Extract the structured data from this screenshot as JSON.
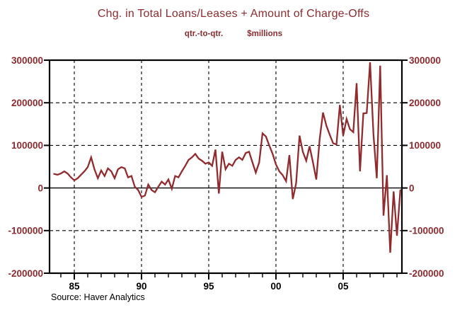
{
  "title": "Chg. in Total Loans/Leases + Amount of Charge-Offs",
  "subtitle": {
    "left": "qtr.-to-qtr.",
    "right": "$millions"
  },
  "source": "Source: Haver Analytics",
  "colors": {
    "title_red": "#8E2B2F",
    "axis_label_red": "#8E2B2F",
    "line_red": "#922B2E",
    "axis_black": "#000000",
    "background": "#FFFFFF"
  },
  "chart_data": {
    "type": "line",
    "title": "Chg. in Total Loans/Leases + Amount of Charge-Offs",
    "subtitle": "qtr.-to-qtr. $millions",
    "units": "$millions",
    "frequency": "quarterly",
    "grid": "dashed horizontal at 200000/100000/-100000, solid zero line, dashed vertical at labeled years",
    "legend_position": "none",
    "ylim": [
      -200000,
      300000
    ],
    "y_ticks": [
      300000,
      200000,
      100000,
      0,
      -100000,
      -200000
    ],
    "dashed_gridlines_y": [
      200000,
      100000,
      -100000
    ],
    "zero_line_y": 0,
    "x_axis": {
      "major_tick_years": [
        1985,
        1990,
        1995,
        2000,
        2005
      ],
      "major_tick_labels": [
        "85",
        "90",
        "95",
        "00",
        "05"
      ],
      "minor_tick_year_range": [
        1984,
        2009
      ],
      "vertical_dashed_gridlines_at_major_ticks": true
    },
    "series": [
      {
        "name": "Chg. in Total Loans/Leases + Amount of Charge-Offs",
        "start_year": 1983.5,
        "period_years": 0.25,
        "values": [
          33000,
          31000,
          34000,
          39000,
          34000,
          25000,
          18000,
          23000,
          31000,
          39000,
          49000,
          72000,
          44000,
          23000,
          41000,
          28000,
          46000,
          39000,
          23000,
          44000,
          49000,
          46000,
          25000,
          28000,
          3000,
          -5000,
          -21000,
          -18000,
          8000,
          -5000,
          -10000,
          3000,
          15000,
          8000,
          20000,
          -2000,
          28000,
          25000,
          39000,
          52000,
          66000,
          72000,
          80000,
          69000,
          64000,
          57000,
          60000,
          52000,
          90000,
          -13000,
          85000,
          44000,
          57000,
          52000,
          66000,
          72000,
          66000,
          82000,
          85000,
          60000,
          36000,
          60000,
          128000,
          121000,
          100000,
          80000,
          55000,
          39000,
          30000,
          16000,
          77000,
          -26000,
          11000,
          123000,
          85000,
          64000,
          98000,
          60000,
          20000,
          115000,
          177000,
          146000,
          125000,
          105000,
          102000,
          195000,
          123000,
          162000,
          138000,
          131000,
          246000,
          39000,
          175000,
          176000,
          295000,
          126000,
          23000,
          287000,
          -65000,
          30000,
          -152000,
          -8000,
          -112000,
          -5000
        ]
      }
    ]
  }
}
